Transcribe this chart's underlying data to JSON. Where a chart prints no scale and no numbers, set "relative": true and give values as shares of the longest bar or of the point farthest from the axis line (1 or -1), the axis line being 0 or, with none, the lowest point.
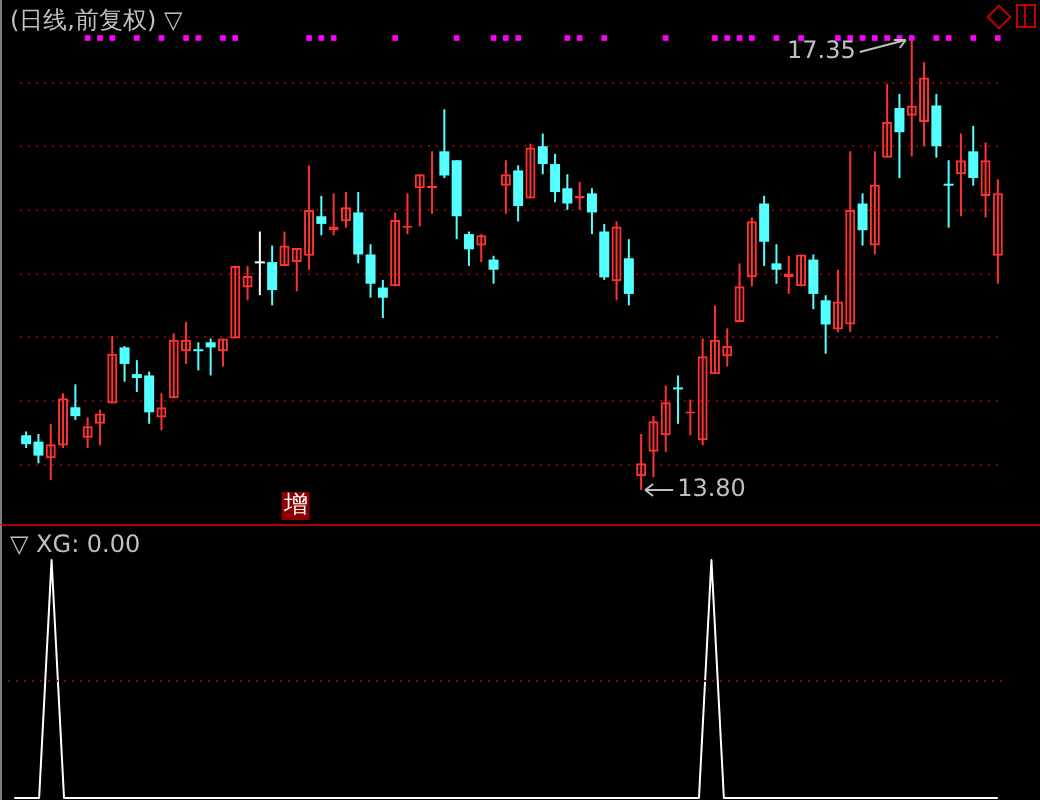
{
  "chart_data": [
    {
      "type": "candlestick",
      "title": "(日线,前复权) ▽",
      "categories": [
        null,
        null,
        null,
        null,
        null,
        null,
        null,
        null,
        null,
        null,
        null,
        null,
        null,
        null,
        null,
        null,
        null,
        null,
        null,
        null,
        null,
        null,
        null,
        null,
        null,
        null,
        null,
        null,
        null,
        null,
        null,
        null,
        null,
        null,
        null,
        null,
        null,
        null,
        null,
        null,
        null,
        null,
        null,
        null,
        null,
        null,
        null,
        null,
        null,
        null,
        null,
        null,
        null,
        null,
        null,
        null,
        null,
        null,
        null,
        null,
        null,
        null,
        null,
        null,
        null,
        null,
        null,
        null,
        null,
        null,
        null,
        null,
        null,
        null,
        null,
        null,
        null,
        null,
        null,
        null
      ],
      "ohlc": [
        [
          14.23,
          14.26,
          14.13,
          14.16
        ],
        [
          14.18,
          14.24,
          14.01,
          14.07
        ],
        [
          14.05,
          14.32,
          13.88,
          14.16
        ],
        [
          14.15,
          14.56,
          14.13,
          14.52
        ],
        [
          14.45,
          14.63,
          14.35,
          14.38
        ],
        [
          14.21,
          14.37,
          14.13,
          14.3
        ],
        [
          14.32,
          14.43,
          14.15,
          14.4
        ],
        [
          14.48,
          15.01,
          14.48,
          14.87
        ],
        [
          14.92,
          14.93,
          14.65,
          14.79
        ],
        [
          14.71,
          14.82,
          14.57,
          14.68
        ],
        [
          14.7,
          14.73,
          14.32,
          14.41
        ],
        [
          14.37,
          14.56,
          14.27,
          14.45
        ],
        [
          14.52,
          15.03,
          14.52,
          14.98
        ],
        [
          14.89,
          15.12,
          14.79,
          14.98
        ],
        [
          14.9,
          14.96,
          14.74,
          14.89
        ],
        [
          14.96,
          14.99,
          14.7,
          14.92
        ],
        [
          14.89,
          14.99,
          14.77,
          14.99
        ],
        [
          14.99,
          15.56,
          14.99,
          15.56
        ],
        [
          15.39,
          15.56,
          15.29,
          15.48
        ],
        [
          15.58,
          15.83,
          15.33,
          15.58
        ],
        [
          15.59,
          15.72,
          15.25,
          15.37
        ],
        [
          15.56,
          15.83,
          15.56,
          15.72
        ],
        [
          15.59,
          15.7,
          15.36,
          15.7
        ],
        [
          15.64,
          16.35,
          15.53,
          16.0
        ],
        [
          15.95,
          16.11,
          15.8,
          15.89
        ],
        [
          15.84,
          16.13,
          15.8,
          15.87
        ],
        [
          15.91,
          16.14,
          15.86,
          16.02
        ],
        [
          15.98,
          16.14,
          15.58,
          15.65
        ],
        [
          15.65,
          15.73,
          15.31,
          15.42
        ],
        [
          15.39,
          15.45,
          15.15,
          15.31
        ],
        [
          15.4,
          15.98,
          15.4,
          15.92
        ],
        [
          15.86,
          16.13,
          15.81,
          15.87
        ],
        [
          16.17,
          16.28,
          15.87,
          16.28
        ],
        [
          16.17,
          16.46,
          15.97,
          16.19
        ],
        [
          16.46,
          16.79,
          16.25,
          16.27
        ],
        [
          16.39,
          16.39,
          15.77,
          15.95
        ],
        [
          15.81,
          15.83,
          15.56,
          15.69
        ],
        [
          15.72,
          15.81,
          15.59,
          15.8
        ],
        [
          15.61,
          15.64,
          15.42,
          15.53
        ],
        [
          16.19,
          16.39,
          15.97,
          16.28
        ],
        [
          16.31,
          16.35,
          15.91,
          16.03
        ],
        [
          16.09,
          16.52,
          16.09,
          16.49
        ],
        [
          16.5,
          16.6,
          16.28,
          16.36
        ],
        [
          16.36,
          16.44,
          16.06,
          16.14
        ],
        [
          16.17,
          16.28,
          16.0,
          16.05
        ],
        [
          16.09,
          16.22,
          16.0,
          16.11
        ],
        [
          16.13,
          16.17,
          15.81,
          15.98
        ],
        [
          15.83,
          15.89,
          15.45,
          15.47
        ],
        [
          15.44,
          15.91,
          15.29,
          15.87
        ],
        [
          15.62,
          15.77,
          15.25,
          15.34
        ],
        [
          13.91,
          14.24,
          13.8,
          14.01
        ],
        [
          14.1,
          14.38,
          13.9,
          14.34
        ],
        [
          14.23,
          14.62,
          14.1,
          14.49
        ],
        [
          14.6,
          14.7,
          14.32,
          14.59
        ],
        [
          14.4,
          14.51,
          14.23,
          14.41
        ],
        [
          14.19,
          14.99,
          14.15,
          14.85
        ],
        [
          14.71,
          15.25,
          14.71,
          14.98
        ],
        [
          14.85,
          15.07,
          14.77,
          14.93
        ],
        [
          15.12,
          15.58,
          15.12,
          15.4
        ],
        [
          15.47,
          15.94,
          15.4,
          15.91
        ],
        [
          16.05,
          16.11,
          15.56,
          15.75
        ],
        [
          15.58,
          15.73,
          15.42,
          15.53
        ],
        [
          15.47,
          15.64,
          15.34,
          15.5
        ],
        [
          15.4,
          15.65,
          15.4,
          15.65
        ],
        [
          15.61,
          15.65,
          15.22,
          15.34
        ],
        [
          15.29,
          15.33,
          14.87,
          15.1
        ],
        [
          15.06,
          15.53,
          15.04,
          15.28
        ],
        [
          15.1,
          16.46,
          15.04,
          16.0
        ],
        [
          16.05,
          16.13,
          15.72,
          15.84
        ],
        [
          15.72,
          16.46,
          15.65,
          16.2
        ],
        [
          16.41,
          16.99,
          16.41,
          16.69
        ],
        [
          16.8,
          16.91,
          16.25,
          16.61
        ],
        [
          16.74,
          17.35,
          16.42,
          16.82
        ],
        [
          16.69,
          17.16,
          16.5,
          17.04
        ],
        [
          16.82,
          16.91,
          16.41,
          16.5
        ],
        [
          16.19,
          16.39,
          15.86,
          16.19
        ],
        [
          16.28,
          16.6,
          15.95,
          16.39
        ],
        [
          16.46,
          16.66,
          16.19,
          16.25
        ],
        [
          16.11,
          16.53,
          15.94,
          16.39
        ],
        [
          15.64,
          16.24,
          15.42,
          16.13
        ]
      ],
      "colors": [
        "#54ffff",
        "#54ffff",
        "#ff3232",
        "#ff3232",
        "#54ffff",
        "#ff3232",
        "#ff3232",
        "#ff3232",
        "#54ffff",
        "#54ffff",
        "#54ffff",
        "#ff3232",
        "#ff3232",
        "#ff3232",
        "#54ffff",
        "#54ffff",
        "#ff3232",
        "#ff3232",
        "#ff3232",
        "#ffffff",
        "#54ffff",
        "#ff3232",
        "#ff3232",
        "#ff3232",
        "#54ffff",
        "#ff3232",
        "#ff3232",
        "#54ffff",
        "#54ffff",
        "#54ffff",
        "#ff3232",
        "#ff3232",
        "#ff3232",
        "#ff3232",
        "#54ffff",
        "#54ffff",
        "#54ffff",
        "#ff3232",
        "#54ffff",
        "#ff3232",
        "#54ffff",
        "#ff3232",
        "#54ffff",
        "#54ffff",
        "#54ffff",
        "#ff3232",
        "#54ffff",
        "#54ffff",
        "#ff3232",
        "#54ffff",
        "#ff3232",
        "#ff3232",
        "#ff3232",
        "#54ffff",
        "#ff3232",
        "#ff3232",
        "#ff3232",
        "#ff3232",
        "#ff3232",
        "#ff3232",
        "#54ffff",
        "#54ffff",
        "#ff3232",
        "#ff3232",
        "#54ffff",
        "#54ffff",
        "#ff3232",
        "#ff3232",
        "#54ffff",
        "#ff3232",
        "#ff3232",
        "#54ffff",
        "#ff3232",
        "#ff3232",
        "#54ffff",
        "#54ffff",
        "#ff3232",
        "#54ffff",
        "#ff3232",
        "#ff3232"
      ],
      "series": [
        {
          "type": "scatter",
          "color": "#ff00ff",
          "marker": "square",
          "values": [
            null,
            null,
            null,
            null,
            null,
            17.35,
            17.35,
            17.35,
            null,
            17.35,
            null,
            17.35,
            null,
            17.35,
            17.35,
            null,
            17.35,
            17.35,
            null,
            null,
            null,
            null,
            null,
            17.35,
            17.35,
            17.35,
            null,
            null,
            null,
            null,
            17.35,
            null,
            null,
            null,
            null,
            17.35,
            null,
            null,
            17.35,
            17.35,
            17.35,
            null,
            null,
            null,
            17.35,
            17.35,
            null,
            17.35,
            null,
            null,
            null,
            null,
            17.35,
            null,
            null,
            null,
            17.35,
            17.35,
            17.35,
            17.35,
            null,
            17.35,
            null,
            17.35,
            null,
            null,
            17.35,
            17.35,
            17.35,
            17.35,
            17.35,
            17.35,
            17.35,
            null,
            17.35,
            17.35,
            null,
            17.35,
            null,
            17.35
          ]
        }
      ],
      "yticks": [
        {
          "value": 14,
          "label": null
        },
        {
          "value": 14.5,
          "label": null
        },
        {
          "value": 15,
          "label": null
        },
        {
          "value": 15.5,
          "label": null
        },
        {
          "value": 16,
          "label": null
        },
        {
          "value": 16.5,
          "label": null
        },
        {
          "value": 17,
          "label": null
        }
      ],
      "grid": "y",
      "annotations": [
        "17.35",
        "13.80",
        "增"
      ]
    },
    {
      "type": "line",
      "title": "▽ XG: 0.00",
      "categories": [
        null,
        null,
        null,
        null,
        null,
        null,
        null,
        null,
        null,
        null,
        null,
        null,
        null,
        null,
        null,
        null,
        null,
        null,
        null,
        null,
        null,
        null,
        null,
        null,
        null,
        null,
        null,
        null,
        null,
        null,
        null,
        null,
        null,
        null,
        null,
        null,
        null,
        null,
        null,
        null,
        null,
        null,
        null,
        null,
        null,
        null,
        null,
        null,
        null,
        null,
        null,
        null,
        null,
        null,
        null,
        null,
        null,
        null,
        null,
        null,
        null,
        null,
        null,
        null,
        null,
        null,
        null,
        null,
        null,
        null,
        null,
        null,
        null,
        null,
        null,
        null,
        null,
        null,
        null,
        null
      ],
      "values": [
        0,
        0,
        0,
        1,
        0,
        0,
        0,
        0,
        0,
        0,
        0,
        0,
        0,
        0,
        0,
        0,
        0,
        0,
        0,
        0,
        0,
        0,
        0,
        0,
        0,
        0,
        0,
        0,
        0,
        0,
        0,
        0,
        0,
        0,
        0,
        0,
        0,
        0,
        0,
        0,
        0,
        0,
        0,
        0,
        0,
        0,
        0,
        0,
        0,
        0,
        0,
        0,
        0,
        0,
        0,
        0,
        1,
        0,
        0,
        0,
        0,
        0,
        0,
        0,
        0,
        0,
        0,
        0,
        0,
        0,
        0,
        0,
        0,
        0,
        0,
        0,
        0,
        0,
        0,
        0
      ],
      "color": "#ffffff",
      "relative": true,
      "ref_lines": [
        {
          "axis": "y",
          "value": 0.5,
          "color": "#8b0000",
          "line_style": "dotted"
        }
      ]
    }
  ]
}
